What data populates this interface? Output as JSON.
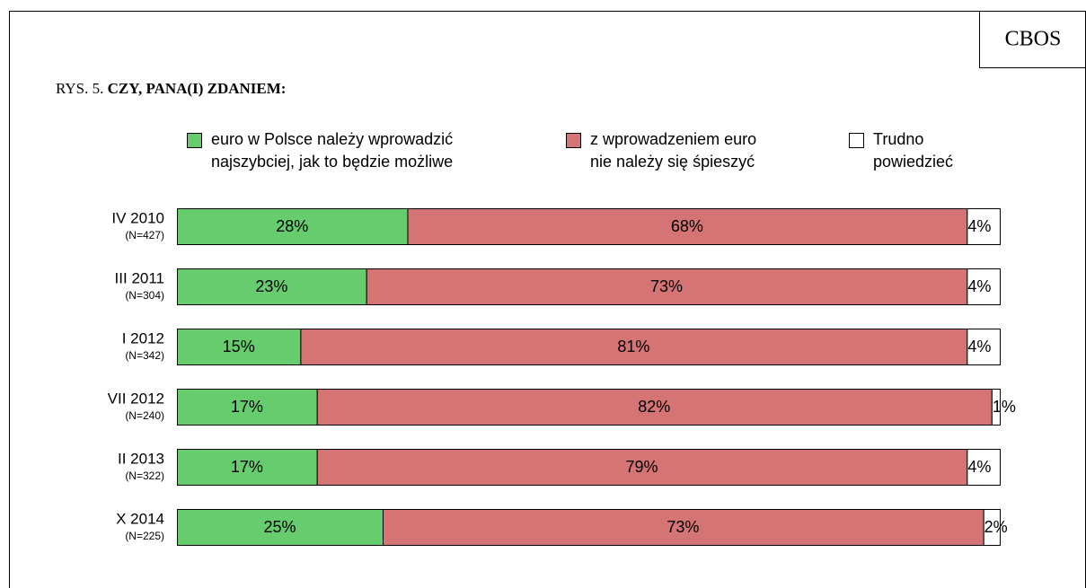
{
  "chart_data": {
    "type": "stacked_bar_horizontal",
    "source": "CBOS",
    "figure_label": "RYS. 5.",
    "title": "CZY, PANA(I) ZDANIEM:",
    "categories": [
      "IV 2010",
      "III 2011",
      "I 2012",
      "VII 2012",
      "II 2013",
      "X 2014"
    ],
    "sample_sizes": [
      "(N=427)",
      "(N=304)",
      "(N=342)",
      "(N=240)",
      "(N=322)",
      "(N=225)"
    ],
    "xlim": [
      0,
      100
    ],
    "series": [
      {
        "name": "euro w Polsce należy wprowadzić\nnajszybciej, jak to będzie możliwe",
        "color": "#66cc6e",
        "values": [
          28,
          23,
          15,
          17,
          17,
          25
        ],
        "value_labels": [
          "28%",
          "23%",
          "15%",
          "17%",
          "17%",
          "25%"
        ]
      },
      {
        "name": "z wprowadzeniem euro\nnie należy się śpieszyć",
        "color": "#d47474",
        "values": [
          68,
          73,
          81,
          82,
          79,
          73
        ],
        "value_labels": [
          "68%",
          "73%",
          "81%",
          "82%",
          "79%",
          "73%"
        ]
      },
      {
        "name": "Trudno\npowiedzieć",
        "color": "#ffffff",
        "values": [
          4,
          4,
          4,
          1,
          4,
          2
        ],
        "value_labels": [
          "4%",
          "4%",
          "4%",
          "1%",
          "4%",
          "2%"
        ]
      }
    ]
  }
}
